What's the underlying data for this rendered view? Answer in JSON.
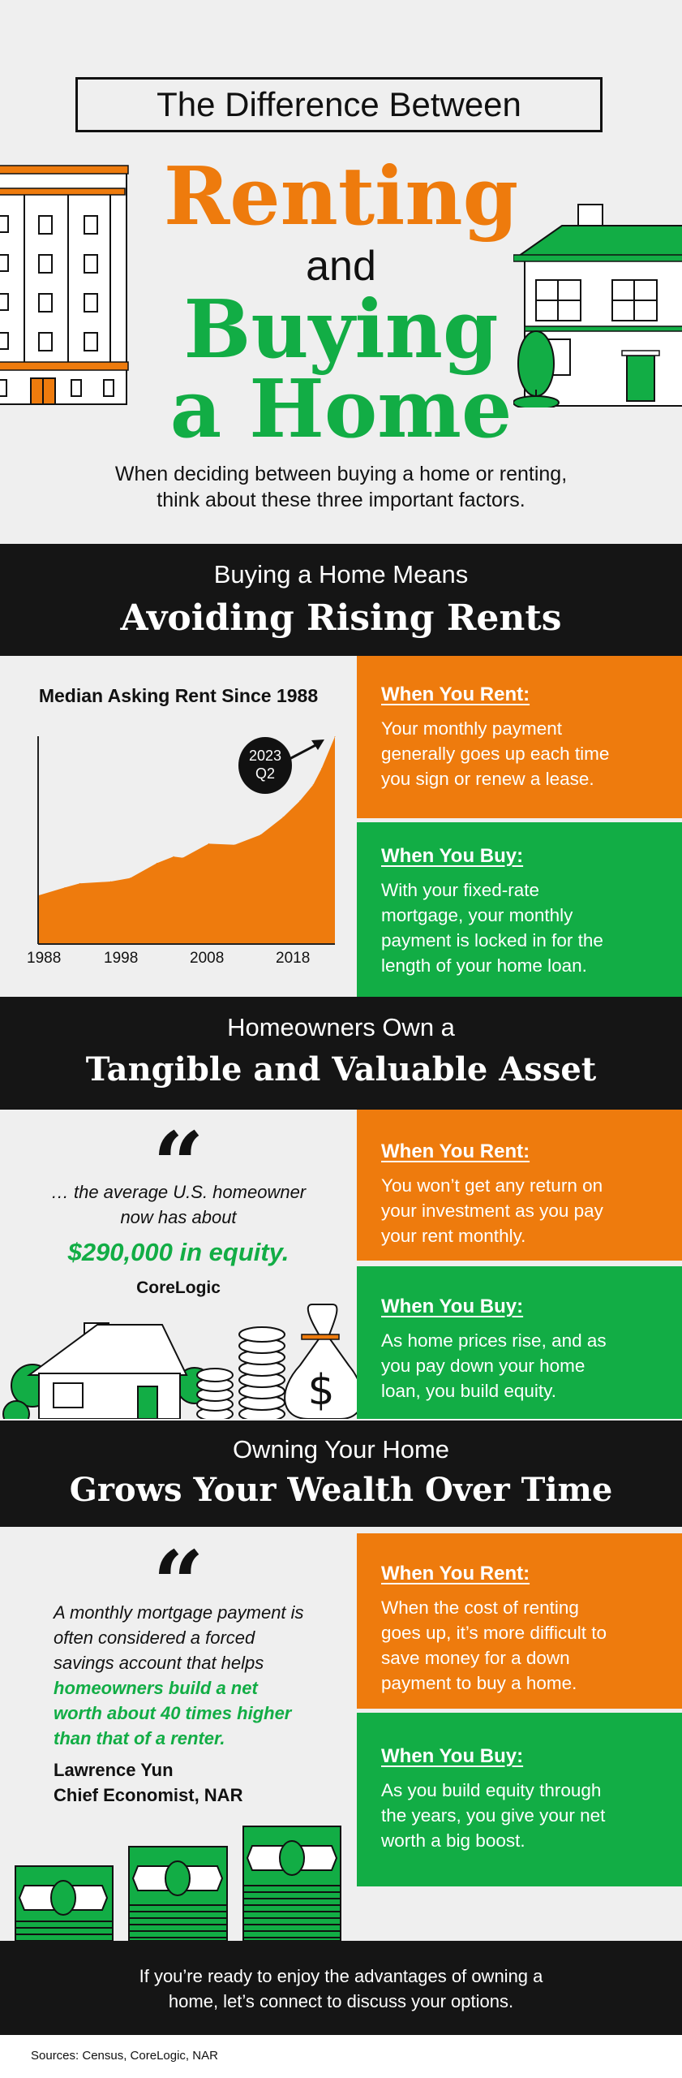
{
  "header": {
    "boxed_title": "The Difference Between",
    "word1": "Renting",
    "word2": "and",
    "word3": "Buying",
    "word4": "a Home",
    "subtitle_line1": "When deciding between buying a home or renting,",
    "subtitle_line2": "think about these three important factors."
  },
  "colors": {
    "orange": "#ee7b0d",
    "green": "#12ad45",
    "dark": "#151515",
    "background": "#efefef"
  },
  "sections": [
    {
      "kicker": "Buying a Home Means",
      "title": "Avoiding Rising Rents",
      "rent": {
        "heading": "When You Rent:",
        "lines": [
          "Your monthly payment",
          "generally goes up each time",
          "you sign or renew a lease."
        ]
      },
      "buy": {
        "heading": "When You Buy:",
        "lines": [
          "With your fixed-rate",
          "mortgage, your monthly",
          "payment is locked in for the",
          "length of your home loan."
        ]
      }
    },
    {
      "kicker": "Homeowners Own a",
      "title": "Tangible and Valuable Asset",
      "quote": {
        "lines": [
          "… the average U.S. homeowner",
          "now has about"
        ],
        "highlight": "$290,000 in equity.",
        "source": "CoreLogic"
      },
      "rent": {
        "heading": "When You Rent:",
        "lines": [
          "You won’t get any return on",
          "your investment as you pay",
          "your rent monthly."
        ]
      },
      "buy": {
        "heading": "When You Buy:",
        "lines": [
          "As home prices rise, and as",
          "you pay down your home",
          "loan, you build equity."
        ]
      }
    },
    {
      "kicker": "Owning Your Home",
      "title": "Grows Your Wealth Over Time",
      "quote": {
        "lines": [
          "A monthly mortgage payment is",
          "often considered a forced",
          "savings account that helps"
        ],
        "highlight_lines": [
          "homeowners build a net",
          "worth about 40 times higher",
          "than that of a renter."
        ],
        "author": "Lawrence Yun",
        "author_title": "Chief Economist, NAR"
      },
      "rent": {
        "heading": "When You Rent:",
        "lines": [
          "When the cost of renting",
          "goes up, it’s more difficult to",
          "save money for a down",
          "payment to buy a home."
        ]
      },
      "buy": {
        "heading": "When You Buy:",
        "lines": [
          "As you build equity through",
          "the years, you give your net",
          "worth a big boost."
        ]
      }
    }
  ],
  "footer": {
    "cta_line1": "If you’re ready to enjoy the advantages of owning a",
    "cta_line2": "home, let’s connect to discuss your options.",
    "sources": "Sources: Census, CoreLogic, NAR"
  },
  "chart_data": {
    "type": "area",
    "title": "Median Asking Rent Since 1988",
    "xlabel": "",
    "ylabel": "",
    "x_ticks": [
      "1988",
      "1998",
      "2008",
      "2018"
    ],
    "annotation": {
      "line1": "2023",
      "line2": "Q2"
    },
    "xlim": [
      1988,
      2023.5
    ],
    "ylim": [
      0,
      1450
    ],
    "grid": false,
    "color": "#ee7b0d",
    "x": [
      1988,
      1991.2,
      1993,
      1996.7,
      1999,
      2002.2,
      2004.2,
      2005.3,
      2008.4,
      2011.5,
      2014.6,
      2017.3,
      2019.3,
      2020.9,
      2021.9,
      2023.5
    ],
    "y": [
      338,
      394,
      423,
      436,
      460,
      564,
      610,
      602,
      700,
      692,
      762,
      885,
      998,
      1111,
      1224,
      1447
    ]
  }
}
